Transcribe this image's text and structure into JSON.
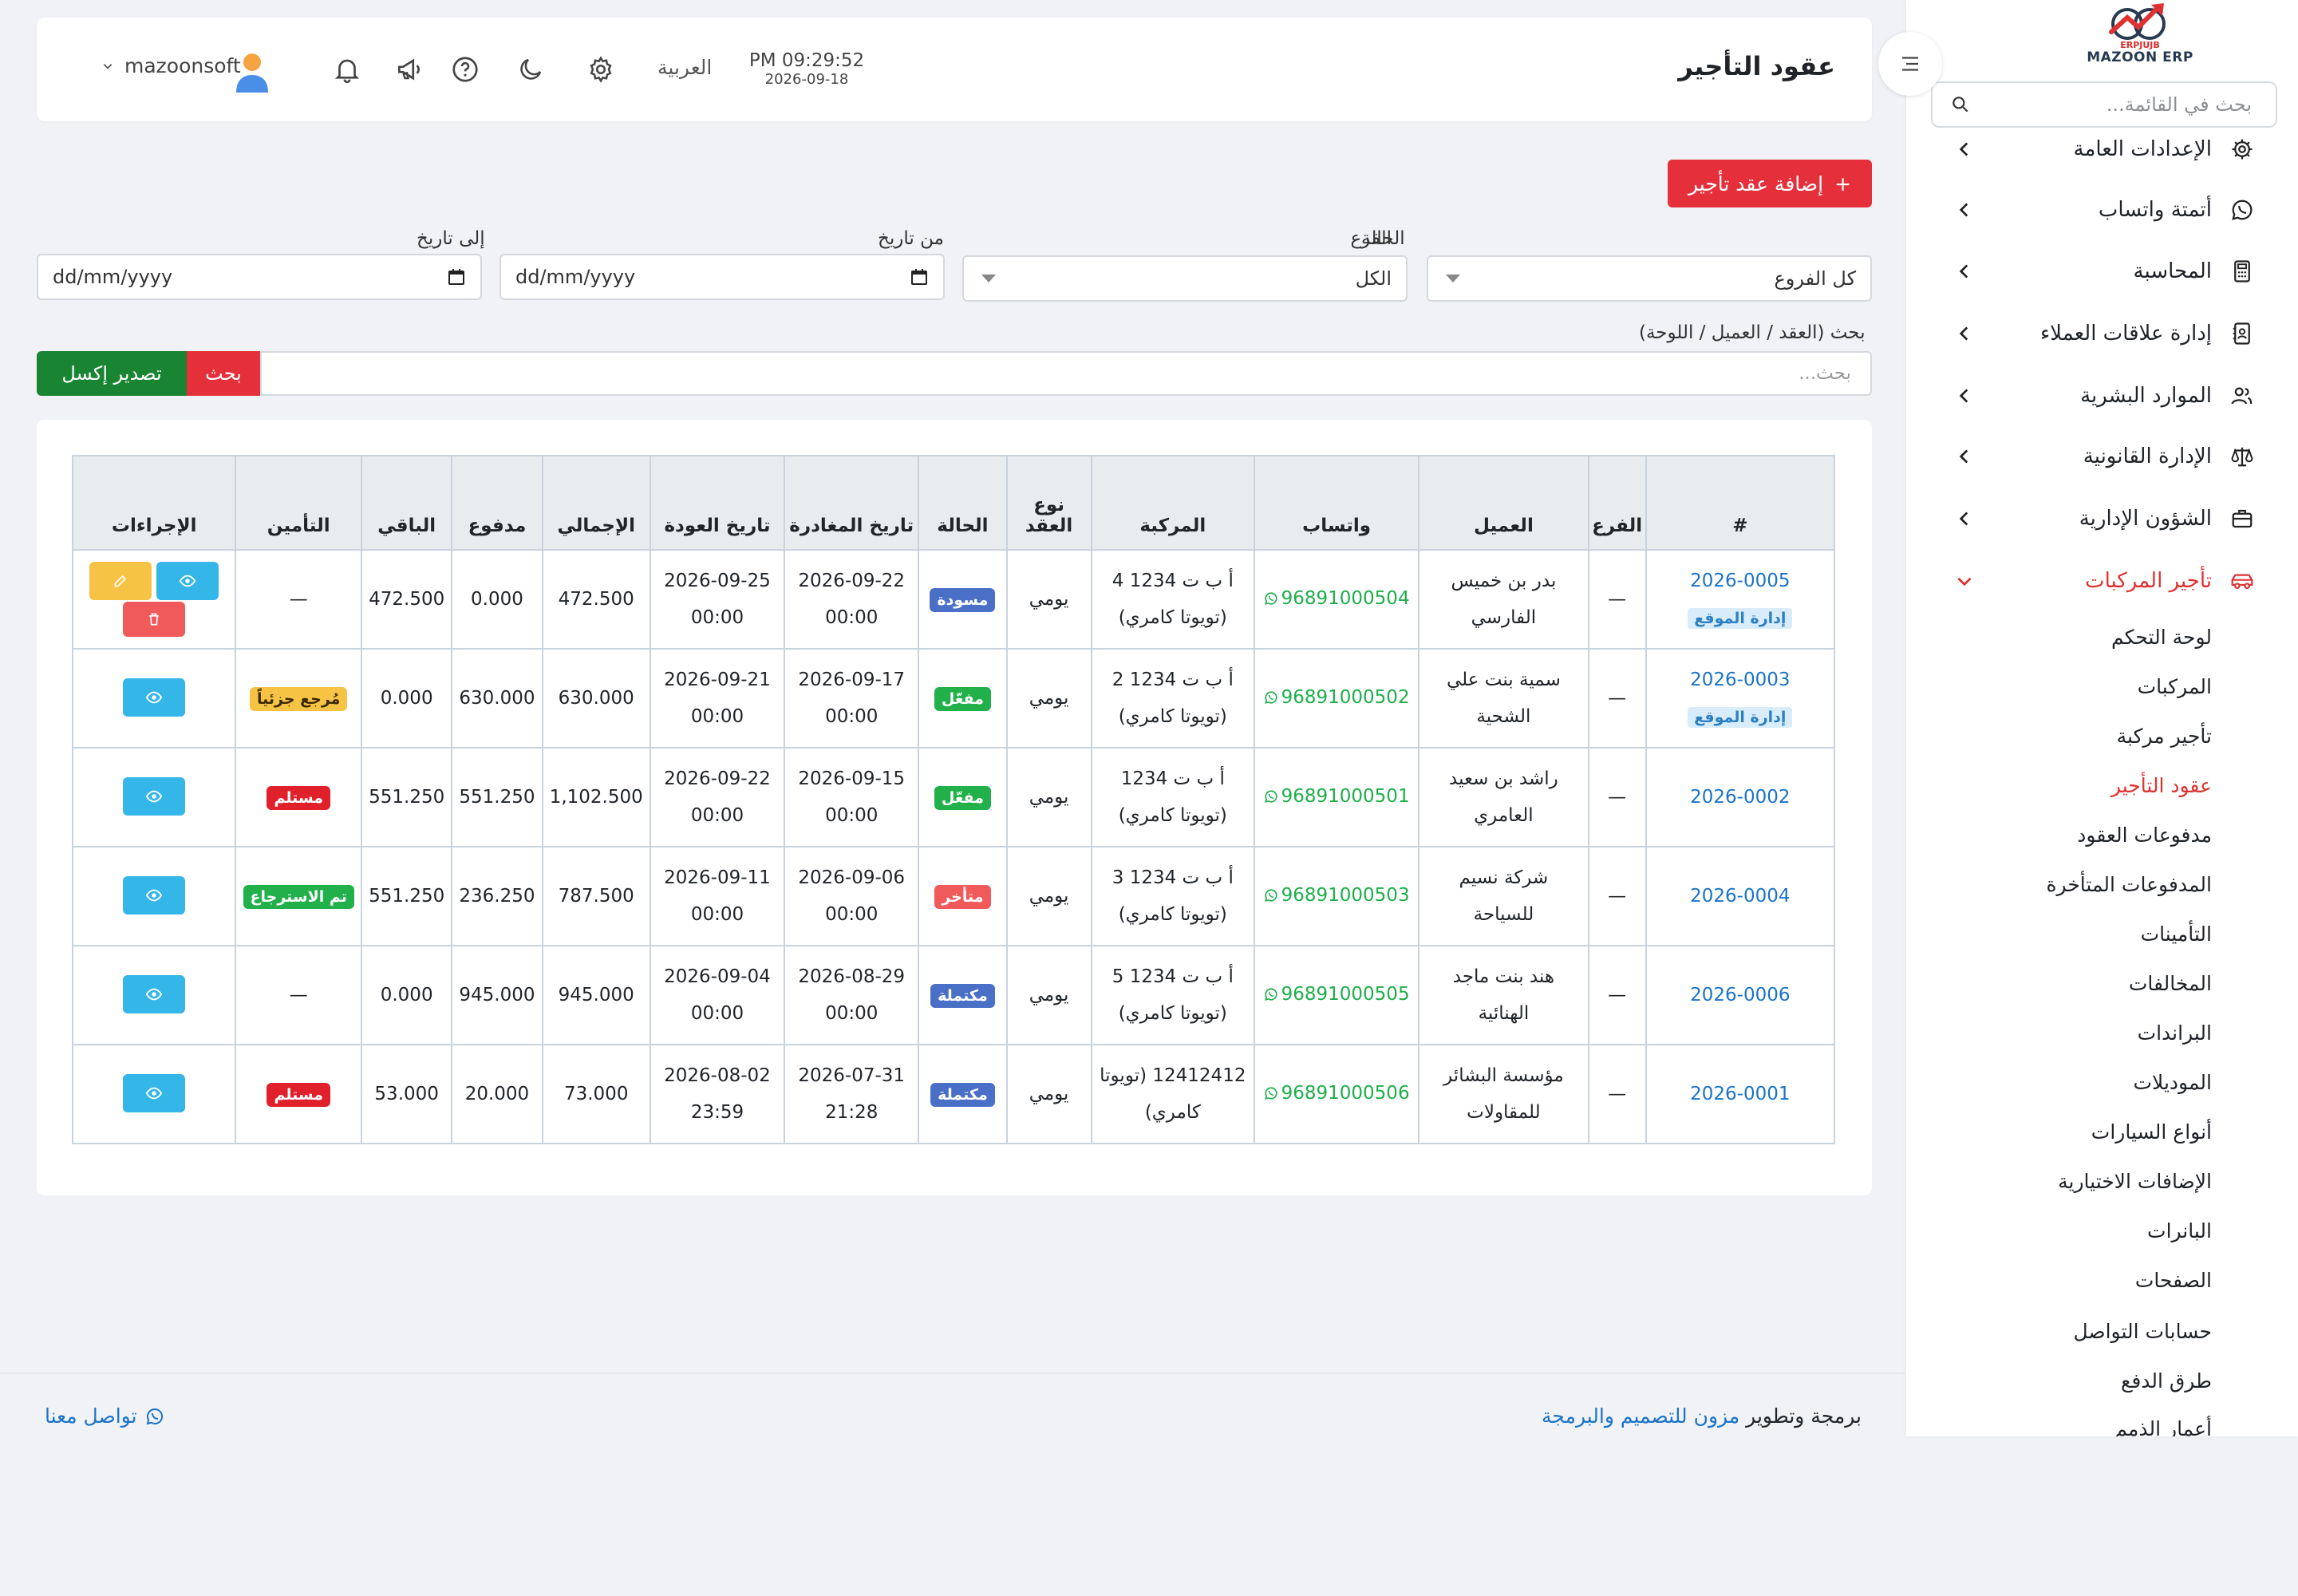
{
  "colors": {
    "accent": "#e5303b",
    "success": "#198432",
    "link": "#1a73c9",
    "info": "#35b6e8",
    "warning": "#f6c344"
  },
  "brand": {
    "tiny": "ERPJUJB",
    "name": "MAZOON ERP"
  },
  "sidebar": {
    "search_placeholder": "بحث في القائمة...",
    "items": [
      {
        "label": "الإعدادات العامة",
        "icon": "gear-icon"
      },
      {
        "label": "أتمتة واتساب",
        "icon": "whatsapp-icon"
      },
      {
        "label": "المحاسبة",
        "icon": "calculator-icon"
      },
      {
        "label": "إدارة علاقات العملاء",
        "icon": "contact-card-icon"
      },
      {
        "label": "الموارد البشرية",
        "icon": "users-icon"
      },
      {
        "label": "الإدارة القانونية",
        "icon": "scale-icon"
      },
      {
        "label": "الشؤون الإدارية",
        "icon": "briefcase-icon"
      },
      {
        "label": "تأجير المركبات",
        "icon": "car-icon"
      }
    ],
    "subitems": [
      "لوحة التحكم",
      "المركبات",
      "تأجير مركبة",
      "عقود التأجير",
      "مدفوعات العقود",
      "المدفوعات المتأخرة",
      "التأمينات",
      "المخالفات",
      "البراندات",
      "الموديلات",
      "أنواع السيارات",
      "الإضافات الاختيارية",
      "البانرات",
      "الصفحات",
      "حسابات التواصل",
      "طرق الدفع",
      "أعمار الذمم"
    ]
  },
  "topbar": {
    "title": "عقود التأجير",
    "time": "PM 09:29:52",
    "date": "2026-09-18",
    "language": "العربية",
    "username": "mazoonsoft"
  },
  "actions": {
    "add_contract": "إضافة عقد تأجير",
    "search": "بحث",
    "export": "تصدير إكسل"
  },
  "filters": {
    "branch_label": "الفرع",
    "branch_value": "كل الفروع",
    "status_label": "الحالة",
    "status_value": "الكل",
    "from_label": "من تاريخ",
    "to_label": "إلى تاريخ",
    "date_placeholder": "dd/mm/yyyy",
    "search_label": "بحث (العقد / العميل / اللوحة)",
    "search_placeholder": "بحث..."
  },
  "table": {
    "headers": {
      "num": "#",
      "branch": "الفرع",
      "client": "العميل",
      "whatsapp": "واتساب",
      "vehicle": "المركبة",
      "type": "نوع العقد",
      "status": "الحالة",
      "departure": "تاريخ المغادرة",
      "return": "تاريخ العودة",
      "total": "الإجمالي",
      "paid": "مدفوع",
      "remaining": "الباقي",
      "insurance": "التأمين",
      "actions": "الإجراءات"
    },
    "rows": [
      {
        "num": "2026-0005",
        "site": "إدارة الموقع",
        "branch": "—",
        "client": "بدر بن خميس الفارسي",
        "whatsapp": "96891000504",
        "vehicle": "أ ب ت 1234 4 (تويوتا كامري)",
        "type": "يومي",
        "status": "مسودة",
        "status_color": "#4a6fc7",
        "dep_date": "2026-09-22",
        "dep_time": "00:00",
        "ret_date": "2026-09-25",
        "ret_time": "00:00",
        "total": "472.500",
        "paid": "0.000",
        "remaining": "472.500",
        "insurance": "—",
        "ins_color": "",
        "edit": true
      },
      {
        "num": "2026-0003",
        "site": "إدارة الموقع",
        "branch": "—",
        "client": "سمية بنت علي الشحية",
        "whatsapp": "96891000502",
        "vehicle": "أ ب ت 1234 2 (تويوتا كامري)",
        "type": "يومي",
        "status": "مفعّل",
        "status_color": "#22b04a",
        "dep_date": "2026-09-17",
        "dep_time": "00:00",
        "ret_date": "2026-09-21",
        "ret_time": "00:00",
        "total": "630.000",
        "paid": "630.000",
        "remaining": "0.000",
        "insurance": "مُرجع جزئياً",
        "ins_color": "#f6c344",
        "edit": false
      },
      {
        "num": "2026-0002",
        "site": "",
        "branch": "—",
        "client": "راشد بن سعيد العامري",
        "whatsapp": "96891000501",
        "vehicle": "أ ب ت 1234 (تويوتا كامري)",
        "type": "يومي",
        "status": "مفعّل",
        "status_color": "#22b04a",
        "dep_date": "2026-09-15",
        "dep_time": "00:00",
        "ret_date": "2026-09-22",
        "ret_time": "00:00",
        "total": "1,102.500",
        "paid": "551.250",
        "remaining": "551.250",
        "insurance": "مستلم",
        "ins_color": "#e0202b",
        "edit": false
      },
      {
        "num": "2026-0004",
        "site": "",
        "branch": "—",
        "client": "شركة نسيم للسياحة",
        "whatsapp": "96891000503",
        "vehicle": "أ ب ت 1234 3 (تويوتا كامري)",
        "type": "يومي",
        "status": "متأخر",
        "status_color": "#f05a5a",
        "dep_date": "2026-09-06",
        "dep_time": "00:00",
        "ret_date": "2026-09-11",
        "ret_time": "00:00",
        "total": "787.500",
        "paid": "236.250",
        "remaining": "551.250",
        "insurance": "تم الاسترجاع",
        "ins_color": "#22b04a",
        "edit": false
      },
      {
        "num": "2026-0006",
        "site": "",
        "branch": "—",
        "client": "هند بنت ماجد الهنائية",
        "whatsapp": "96891000505",
        "vehicle": "أ ب ت 1234 5 (تويوتا كامري)",
        "type": "يومي",
        "status": "مكتملة",
        "status_color": "#4a6fc7",
        "dep_date": "2026-08-29",
        "dep_time": "00:00",
        "ret_date": "2026-09-04",
        "ret_time": "00:00",
        "total": "945.000",
        "paid": "945.000",
        "remaining": "0.000",
        "insurance": "—",
        "ins_color": "",
        "edit": false
      },
      {
        "num": "2026-0001",
        "site": "",
        "branch": "—",
        "client": "مؤسسة البشائر للمقاولات",
        "whatsapp": "96891000506",
        "vehicle": "12412412 (تويوتا كامري)",
        "type": "يومي",
        "status": "مكتملة",
        "status_color": "#4a6fc7",
        "dep_date": "2026-07-31",
        "dep_time": "21:28",
        "ret_date": "2026-08-02",
        "ret_time": "23:59",
        "total": "73.000",
        "paid": "20.000",
        "remaining": "53.000",
        "insurance": "مستلم",
        "ins_color": "#e0202b",
        "edit": false
      }
    ]
  },
  "footer": {
    "credit_prefix": "برمجة وتطوير",
    "credit_link": "مزون للتصميم والبرمجة",
    "contact": "تواصل معنا"
  }
}
